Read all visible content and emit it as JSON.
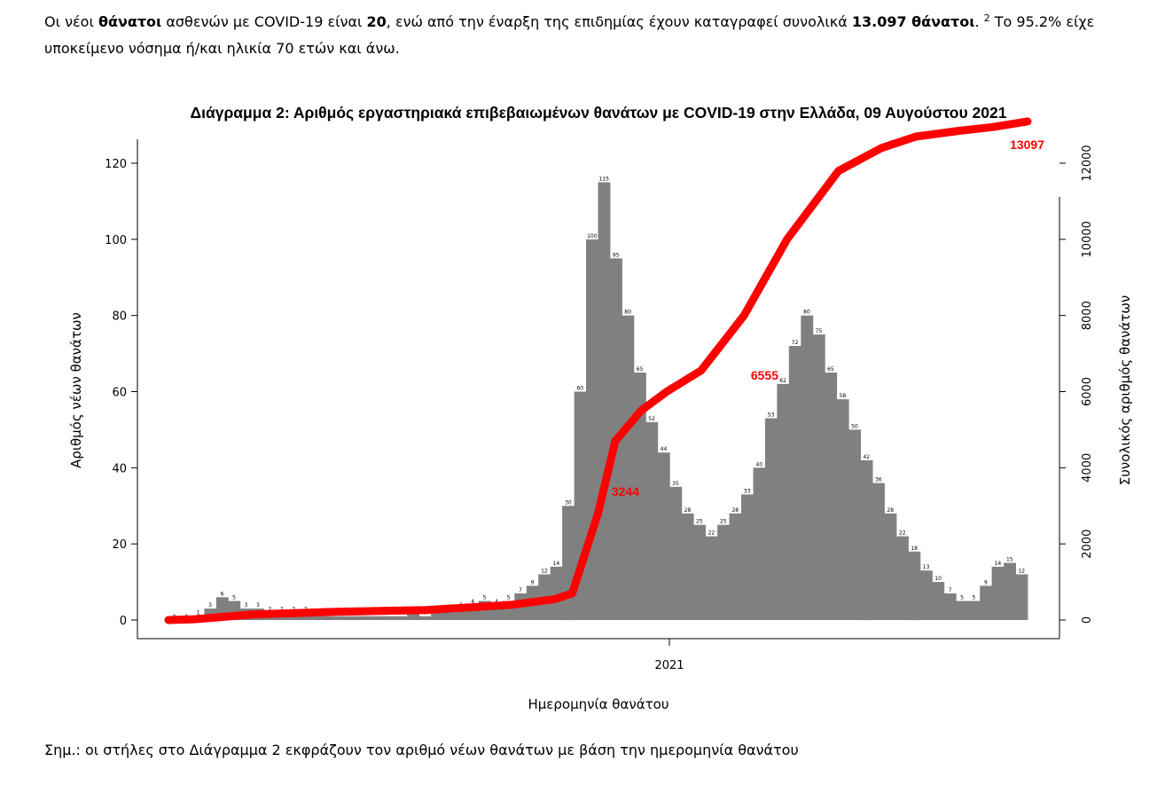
{
  "intro": {
    "part1": "Οι νέοι ",
    "bold1": "θάνατοι",
    "part2": " ασθενών με COVID-19 είναι ",
    "bold2": "20",
    "part3": ", ενώ από την έναρξη της επιδημίας έχουν καταγραφεί συνολικά ",
    "bold3": "13.097 θάνατοι",
    "part4": ".",
    "footnote": "2",
    "part5": "  Το 95.2% είχε",
    "line2": "υποκείμενο νόσημα ή/και ηλικία 70 ετών και άνω."
  },
  "note": "Σημ.: οι στήλες στο Διάγραμμα 2 εκφράζουν τον αριθμό νέων θανάτων με βάση την ημερομηνία θανάτου",
  "chart_data": {
    "type": "bar",
    "title": "Διάγραμμα 2: Αριθμός εργαστηριακά επιβεβαιωμένων θανάτων με COVID-19 στην Ελλάδα, 09 Αυγούστου 2021",
    "xlabel": "Ημερομηνία θανάτου",
    "ylabel": "Αριθμός νέων θανάτων",
    "y2label": "Συνολικός αριθμός θανάτων",
    "ylim": [
      0,
      120
    ],
    "y2lim": [
      0,
      12000
    ],
    "yticks": [
      0,
      20,
      40,
      60,
      80,
      100,
      120
    ],
    "y2ticks": [
      0,
      2000,
      4000,
      6000,
      8000,
      10000,
      12000
    ],
    "xtick_label": "2021",
    "colors": {
      "bars": "#808080",
      "cumulative": "#ff0000"
    },
    "series": [
      {
        "name": "Αριθμός νέων θανάτων",
        "type": "bar",
        "weekly_values": [
          0,
          0,
          1,
          3,
          6,
          5,
          3,
          3,
          2,
          2,
          2,
          2,
          1,
          1,
          1,
          1,
          1,
          1,
          1,
          1,
          2,
          1,
          2,
          2,
          3,
          4,
          5,
          4,
          5,
          7,
          9,
          12,
          14,
          30,
          60,
          100,
          115,
          95,
          80,
          65,
          52,
          44,
          35,
          28,
          25,
          22,
          25,
          28,
          33,
          40,
          53,
          62,
          72,
          80,
          75,
          65,
          58,
          50,
          42,
          36,
          28,
          22,
          18,
          13,
          10,
          7,
          5,
          5,
          9,
          14,
          15,
          12
        ]
      },
      {
        "name": "Συνολικός αριθμός θανάτων",
        "type": "line",
        "x": [
          0,
          0.03,
          0.1,
          0.2,
          0.3,
          0.4,
          0.45,
          0.47,
          0.5,
          0.52,
          0.55,
          0.58,
          0.62,
          0.67,
          0.72,
          0.78,
          0.83,
          0.87,
          0.92,
          0.96,
          1.0
        ],
        "y": [
          0,
          20,
          150,
          220,
          260,
          400,
          550,
          700,
          2800,
          4700,
          5500,
          6000,
          6555,
          8000,
          10000,
          11800,
          12400,
          12700,
          12850,
          12950,
          13097
        ]
      }
    ],
    "annotations": [
      "3244",
      "6555",
      "13097"
    ]
  }
}
